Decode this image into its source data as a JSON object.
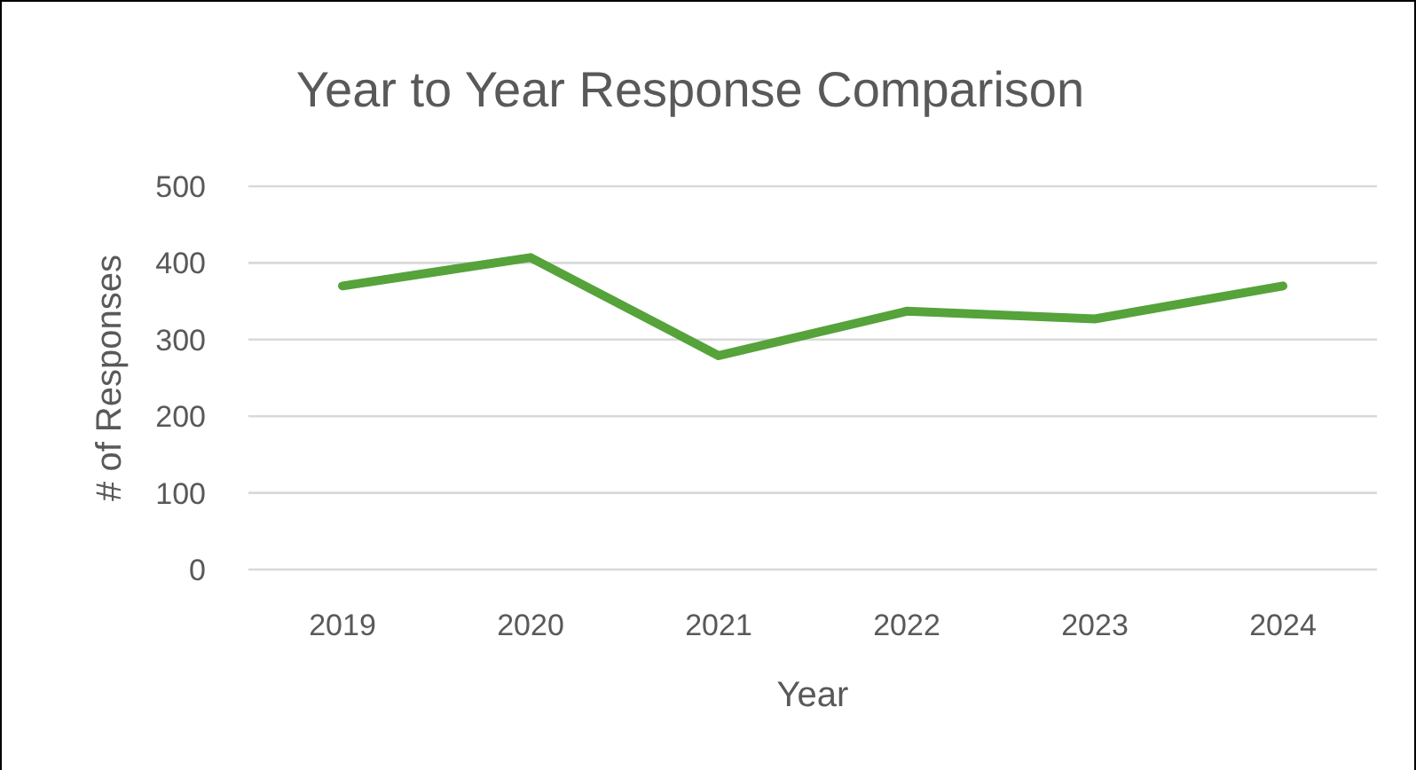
{
  "chart_data": {
    "type": "line",
    "title": "Year to Year Response Comparison",
    "xlabel": "Year",
    "ylabel": "# of Responses",
    "categories": [
      "2019",
      "2020",
      "2021",
      "2022",
      "2023",
      "2024"
    ],
    "series": [
      {
        "color": "#55a33a",
        "values": [
          370,
          407,
          279,
          337,
          327,
          370
        ]
      }
    ],
    "ylim": [
      0,
      500
    ],
    "yticks": [
      0,
      100,
      200,
      300,
      400,
      500
    ],
    "grid": "y",
    "marker": "none",
    "line_style": "solid"
  }
}
